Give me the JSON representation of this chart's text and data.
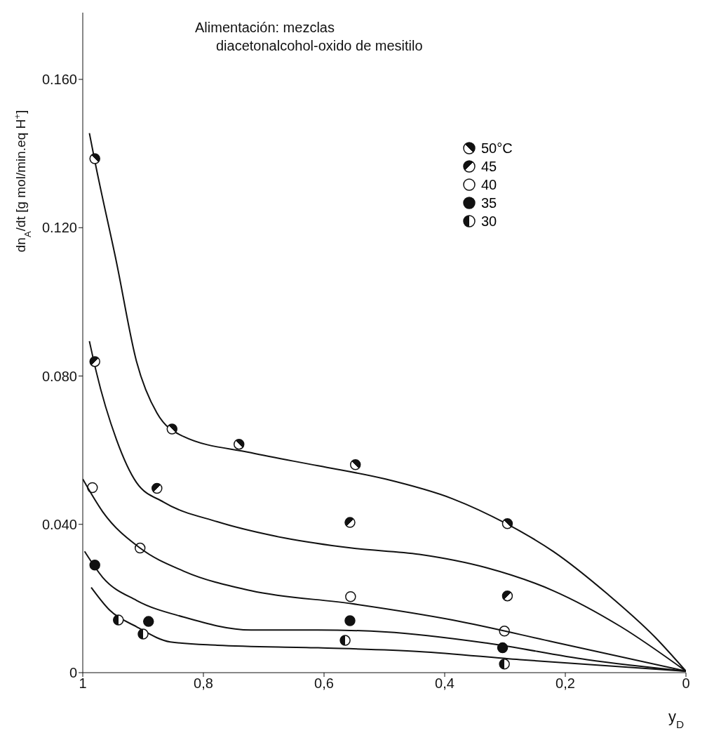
{
  "chart_data": {
    "type": "scatter",
    "title": "Alimentación: mezclas\ndiacetonalcohol-oxido de mesitilo",
    "xlabel": "y$_{D}$",
    "ylabel": "dn$_{A}$/dt [g mol/min.eq H$^{+}$]",
    "xlim": [
      1,
      0
    ],
    "xticks": [
      {
        "value": 1,
        "label": "1"
      },
      {
        "value": 0.8,
        "label": "0,8"
      },
      {
        "value": 0.6,
        "label": "0,6"
      },
      {
        "value": 0.4,
        "label": "0,4"
      },
      {
        "value": 0.2,
        "label": "0,2"
      },
      {
        "value": 0,
        "label": "0"
      }
    ],
    "ylim": [
      0,
      0.178
    ],
    "yticks": [
      {
        "value": 0,
        "label": "0"
      },
      {
        "value": 0.04,
        "label": "0.040"
      },
      {
        "value": 0.08,
        "label": "0.080"
      },
      {
        "value": 0.12,
        "label": "0.120"
      },
      {
        "value": 0.16,
        "label": "0.160"
      }
    ],
    "legend": "top right",
    "marker": "circle",
    "grid": false,
    "series": [
      {
        "name": "50°C",
        "color": "#111111",
        "x": [
          0.98,
          0.852,
          0.741,
          0.548,
          0.296
        ],
        "values": [
          0.1386,
          0.0657,
          0.0616,
          0.0561,
          0.0402
        ]
      },
      {
        "name": "45",
        "color": "#111111",
        "x": [
          0.98,
          0.877,
          0.557,
          0.296
        ],
        "values": [
          0.0839,
          0.0497,
          0.0405,
          0.0207
        ]
      },
      {
        "name": "40",
        "color": "#111111",
        "x": [
          0.984,
          0.905,
          0.556,
          0.301
        ],
        "values": [
          0.0499,
          0.0336,
          0.0205,
          0.0112
        ]
      },
      {
        "name": "35",
        "color": "#111111",
        "x": [
          0.98,
          0.891,
          0.557,
          0.304
        ],
        "values": [
          0.029,
          0.0138,
          0.014,
          0.0067
        ]
      },
      {
        "name": "30",
        "color": "#111111",
        "x": [
          0.941,
          0.9,
          0.565,
          0.301
        ],
        "values": [
          0.0142,
          0.0104,
          0.0087,
          0.0023
        ]
      },
      {
        "type": "line",
        "marker": "none",
        "color": "#111111",
        "x": [
          0.989,
          0.98,
          0.944,
          0.911,
          0.877,
          0.833,
          0.721,
          0.61,
          0.498,
          0.387,
          0.298,
          0.22,
          0.13,
          0.052,
          0
        ],
        "values": [
          0.1455,
          0.138,
          0.1106,
          0.084,
          0.07,
          0.0637,
          0.0593,
          0.0558,
          0.0522,
          0.0469,
          0.0402,
          0.0327,
          0.0212,
          0.0097,
          0.0004
        ]
      },
      {
        "type": "line",
        "marker": "none",
        "color": "#111111",
        "x": [
          0.989,
          0.978,
          0.944,
          0.911,
          0.866,
          0.777,
          0.665,
          0.554,
          0.442,
          0.331,
          0.22,
          0.108,
          0
        ],
        "values": [
          0.0894,
          0.0814,
          0.0628,
          0.0513,
          0.046,
          0.0407,
          0.0363,
          0.0336,
          0.0319,
          0.0283,
          0.0221,
          0.0124,
          0.0004
        ]
      },
      {
        "type": "line",
        "marker": "none",
        "color": "#111111",
        "x": [
          1,
          0.967,
          0.905,
          0.833,
          0.721,
          0.554,
          0.387,
          0.22,
          0
        ],
        "values": [
          0.0522,
          0.0434,
          0.0336,
          0.0274,
          0.0221,
          0.0186,
          0.0142,
          0.0083,
          0.0004
        ]
      },
      {
        "type": "line",
        "marker": "none",
        "color": "#111111",
        "x": [
          0.997,
          0.967,
          0.911,
          0.833,
          0.721,
          0.61,
          0.498,
          0.331,
          0.164,
          0
        ],
        "values": [
          0.0327,
          0.0257,
          0.0195,
          0.015,
          0.0115,
          0.0115,
          0.011,
          0.008,
          0.0035,
          0.0004
        ]
      },
      {
        "type": "line",
        "marker": "none",
        "color": "#111111",
        "x": [
          0.986,
          0.955,
          0.911,
          0.855,
          0.777,
          0.61,
          0.442,
          0.275,
          0
        ],
        "values": [
          0.023,
          0.0168,
          0.0124,
          0.0083,
          0.0074,
          0.0067,
          0.0057,
          0.0035,
          0.0004
        ]
      }
    ]
  }
}
